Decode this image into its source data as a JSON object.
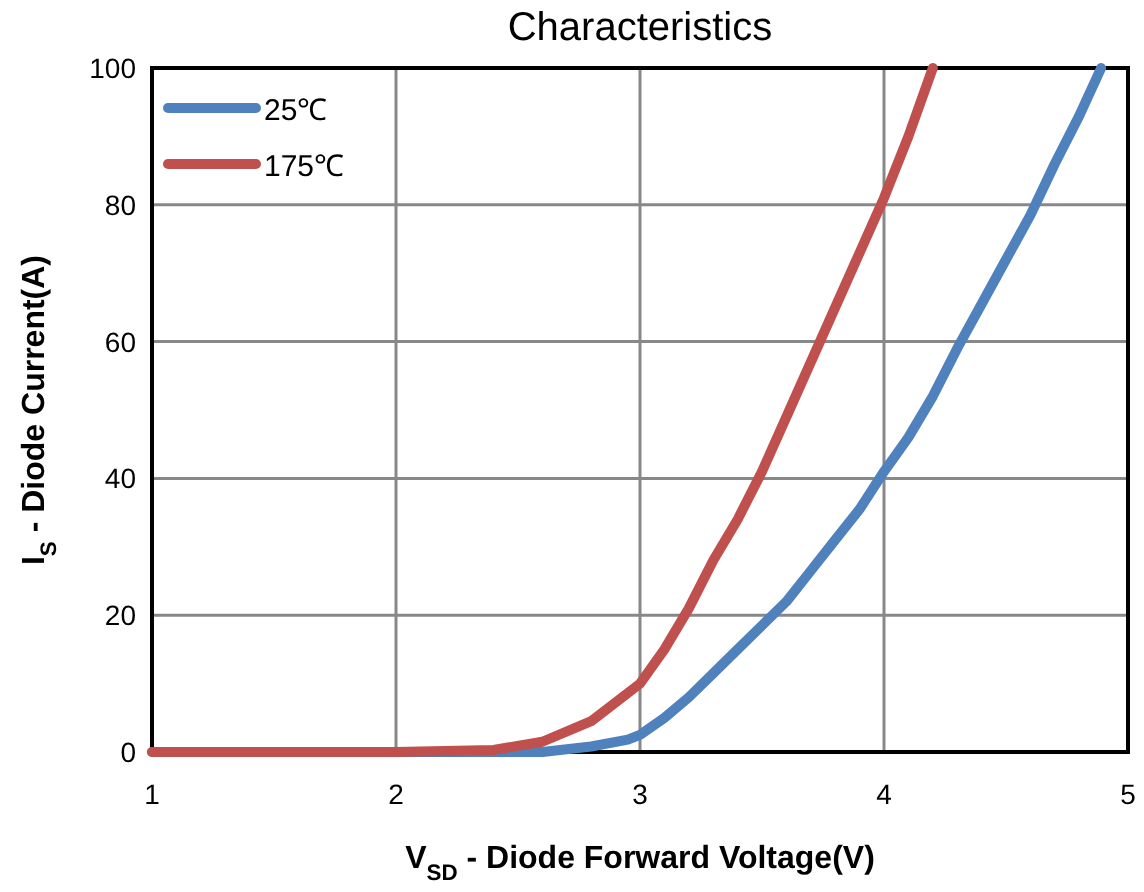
{
  "chart_data": {
    "type": "line",
    "title": "Characteristics",
    "xlabel": "V$_{SD}$ - Diode Forward Voltage(V)",
    "ylabel": "I$_{S}$ - Diode Current(A)",
    "xlim": [
      1,
      5
    ],
    "xticks": [
      1,
      2,
      3,
      4,
      5
    ],
    "ylim": [
      0,
      100
    ],
    "yticks": [
      0,
      20,
      40,
      60,
      80,
      100
    ],
    "grid": true,
    "legend": "top left",
    "marker": "none",
    "series": [
      {
        "name": "25℃",
        "color": "#4f81bd",
        "x": [
          1,
          2.6,
          2.8,
          2.95,
          3.0,
          3.1,
          3.2,
          3.3,
          3.4,
          3.5,
          3.6,
          3.7,
          3.8,
          3.9,
          4.0,
          4.1,
          4.2,
          4.3,
          4.4,
          4.5,
          4.6,
          4.7,
          4.8,
          4.89
        ],
        "values": [
          0,
          0,
          0.8,
          1.8,
          2.5,
          5,
          8,
          11.5,
          15,
          18.5,
          22,
          26.5,
          31,
          35.5,
          41,
          46,
          52,
          59,
          65.5,
          72,
          78.5,
          86,
          93,
          100
        ]
      },
      {
        "name": "175℃",
        "color": "#c0504d",
        "x": [
          1,
          2.0,
          2.4,
          2.6,
          2.8,
          3.0,
          3.1,
          3.2,
          3.3,
          3.4,
          3.5,
          3.6,
          3.7,
          3.8,
          3.9,
          4.0,
          4.1,
          4.2
        ],
        "values": [
          0,
          0,
          0.3,
          1.5,
          4.5,
          10,
          15,
          21,
          28,
          34,
          41,
          49,
          57,
          65,
          73,
          81,
          90,
          100
        ]
      }
    ]
  }
}
